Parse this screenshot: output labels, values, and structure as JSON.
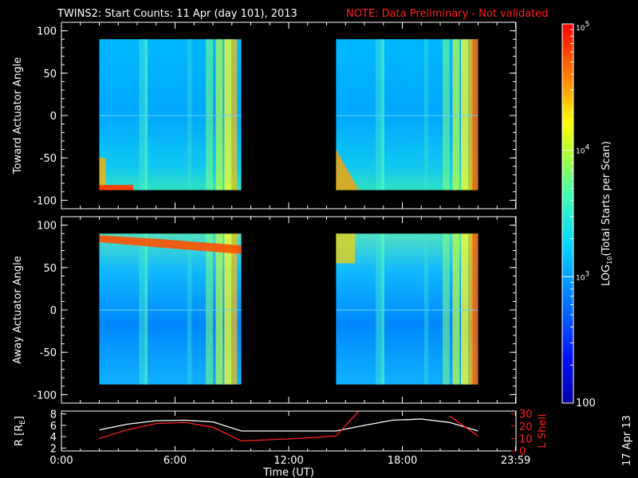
{
  "header": {
    "title": "TWINS2: Start Counts: 11 Apr (day 101), 2013",
    "note": "NOTE: Data Preliminary - Not validated"
  },
  "colors": {
    "background": "#000000",
    "axes": "#ffffff",
    "note": "#ff2020",
    "r_line": "#ffffff",
    "lshell_line": "#ff2020"
  },
  "chart_data": [
    {
      "type": "heatmap",
      "name": "toward-panel",
      "ylabel": "Toward Actuator Angle",
      "ylim": [
        -110,
        110
      ],
      "yticks": [
        100,
        50,
        0,
        -50,
        -100
      ],
      "xlim": [
        0,
        24
      ],
      "blocks": [
        {
          "x_start": 2.0,
          "x_end": 9.5,
          "y_start": -88,
          "y_end": 90
        },
        {
          "x_start": 14.5,
          "x_end": 22.0,
          "y_start": -88,
          "y_end": 90
        }
      ]
    },
    {
      "type": "heatmap",
      "name": "away-panel",
      "ylabel": "Away Actuator Angle",
      "ylim": [
        -110,
        110
      ],
      "yticks": [
        100,
        50,
        0,
        -50,
        -100
      ],
      "xlim": [
        0,
        24
      ],
      "blocks": [
        {
          "x_start": 2.0,
          "x_end": 9.5,
          "y_start": -88,
          "y_end": 90
        },
        {
          "x_start": 14.5,
          "x_end": 22.0,
          "y_start": -88,
          "y_end": 90
        }
      ]
    },
    {
      "type": "line",
      "name": "orbit-panel",
      "ylabel_left": "R [R",
      "ylabel_left_sub": "E",
      "ylabel_left_end": "]",
      "ylabel_right": "L Shell",
      "yticks_left": [
        8,
        6,
        4,
        2
      ],
      "yticks_right": [
        30,
        20,
        10,
        0
      ],
      "ylim_left": [
        1.5,
        8.5
      ],
      "ylim_right": [
        0,
        32
      ],
      "xlim": [
        0,
        24
      ],
      "xlabel": "Time (UT)",
      "xtick_labels": [
        "0:00",
        "6:00",
        "12:00",
        "18:00",
        "23:59"
      ],
      "xtick_values": [
        0,
        6,
        12,
        18,
        23.98
      ],
      "series": [
        {
          "name": "R",
          "axis": "left",
          "x": [
            2.0,
            3.5,
            5.0,
            6.5,
            8.0,
            9.5,
            12.5,
            14.5,
            16.0,
            17.5,
            19.0,
            20.5,
            22.0
          ],
          "y": [
            5.2,
            6.2,
            6.8,
            6.9,
            6.6,
            5.0,
            5.0,
            5.0,
            6.0,
            6.9,
            7.1,
            6.5,
            5.0
          ]
        },
        {
          "name": "L Shell",
          "axis": "right",
          "x": [
            2.0,
            3.5,
            5.0,
            6.5,
            8.0,
            9.5,
            12.5,
            14.5,
            15.7,
            null,
            20.5,
            22.0
          ],
          "y": [
            10,
            17,
            22,
            23,
            19,
            8,
            10,
            12,
            32,
            null,
            28,
            12
          ]
        }
      ]
    },
    {
      "type": "colorbar",
      "name": "colorbar",
      "label": "LOG",
      "label_sub": "10",
      "label_end": "(Total Starts per Scan)",
      "scale": "log",
      "range": [
        100,
        100000
      ],
      "tick_labels": [
        {
          "base": "10",
          "exp": "5",
          "value": 100000
        },
        {
          "base": "10",
          "exp": "4",
          "value": 10000
        },
        {
          "base": "10",
          "exp": "3",
          "value": 1000
        },
        {
          "text": "100",
          "value": 100
        }
      ]
    }
  ],
  "footer": {
    "date_stamp": "17 Apr 13"
  }
}
